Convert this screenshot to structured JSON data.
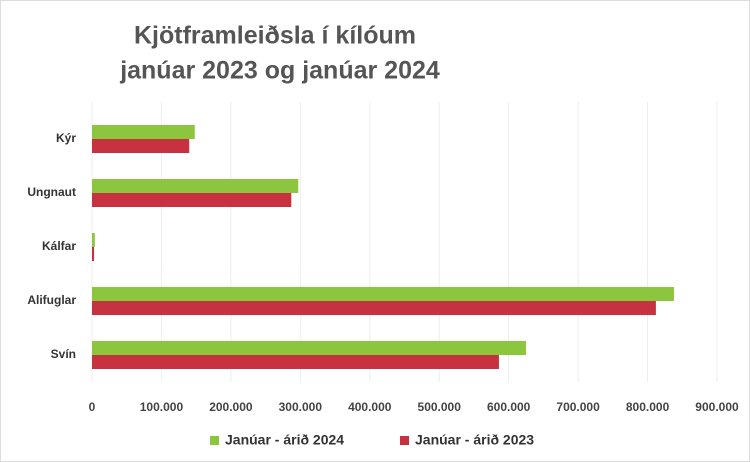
{
  "chart_data": {
    "type": "bar",
    "orientation": "horizontal",
    "title": "Kjötframleiðsla í kílóum",
    "subtitle": "janúar 2023 og janúar 2024",
    "categories": [
      "Kýr",
      "Ungnaut",
      "Kálfar",
      "Alifuglar",
      "Svín"
    ],
    "series": [
      {
        "name": "Janúar - árið 2024",
        "color": "#8cc63f",
        "values": [
          148000,
          297000,
          4000,
          838000,
          625000
        ]
      },
      {
        "name": "Janúar - árið 2023",
        "color": "#c8313f",
        "values": [
          140000,
          287000,
          3000,
          812000,
          586000
        ]
      }
    ],
    "xlim": [
      0,
      900000
    ],
    "xticks": [
      0,
      {
        "value": 100000,
        "label": "100.000"
      },
      {
        "value": 200000,
        "label": "200.000"
      },
      {
        "value": 300000,
        "label": "300.000"
      },
      {
        "value": 400000,
        "label": "400.000"
      },
      {
        "value": 500000,
        "label": "500.000"
      },
      {
        "value": 600000,
        "label": "600.000"
      },
      {
        "value": 700000,
        "label": "700.000"
      },
      {
        "value": 800000,
        "label": "800.000"
      },
      {
        "value": 900000,
        "label": "900.000"
      }
    ],
    "grid": true,
    "legend": "bottom"
  }
}
